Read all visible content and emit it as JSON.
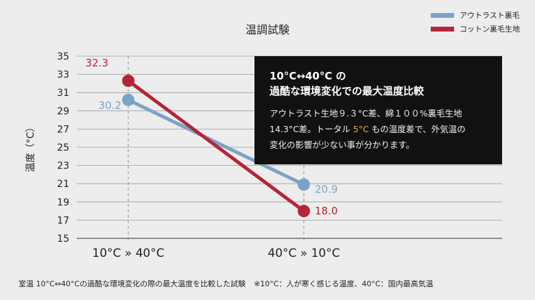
{
  "chart_data": {
    "type": "line",
    "title": "温調試験",
    "ylabel": "温度（°C）",
    "ylim": [
      15,
      35
    ],
    "yticks": [
      15,
      17,
      19,
      21,
      23,
      25,
      27,
      29,
      31,
      33,
      35
    ],
    "categories": [
      "10°C » 40°C",
      "40°C » 10°C"
    ],
    "grid": true,
    "legend_position": "top-right",
    "series": [
      {
        "name": "アウトラスト裏毛",
        "color": "#7ba3c6",
        "values": [
          30.2,
          20.9
        ],
        "labels": [
          "30.2",
          "20.9"
        ]
      },
      {
        "name": "コットン裏毛生地",
        "color": "#b5243a",
        "values": [
          32.3,
          18.0
        ],
        "labels": [
          "32.3",
          "18.0"
        ]
      }
    ]
  },
  "callout": {
    "heading_line1": "10°C↔40°C の",
    "heading_line2": "過酷な環境変化での最大温度比較",
    "body_line1": "アウトラスト生地９.３°C差、綿１００%裏毛生地",
    "body_line2_a": "14.3°C差。トータル ",
    "body_line2_highlight": "5°C",
    "body_line2_b": " もの温度差で、外気温の",
    "body_line3": "変化の影響が少ない事が分かります。",
    "highlight_color": "#e3b23c"
  },
  "footnote": {
    "main": "室温 10°C⇔40°Cの過酷な環境変化の際の最大温度を比較した試験",
    "note": "※10°C：人が寒く感じる温度、40°C：国内最高気温"
  }
}
